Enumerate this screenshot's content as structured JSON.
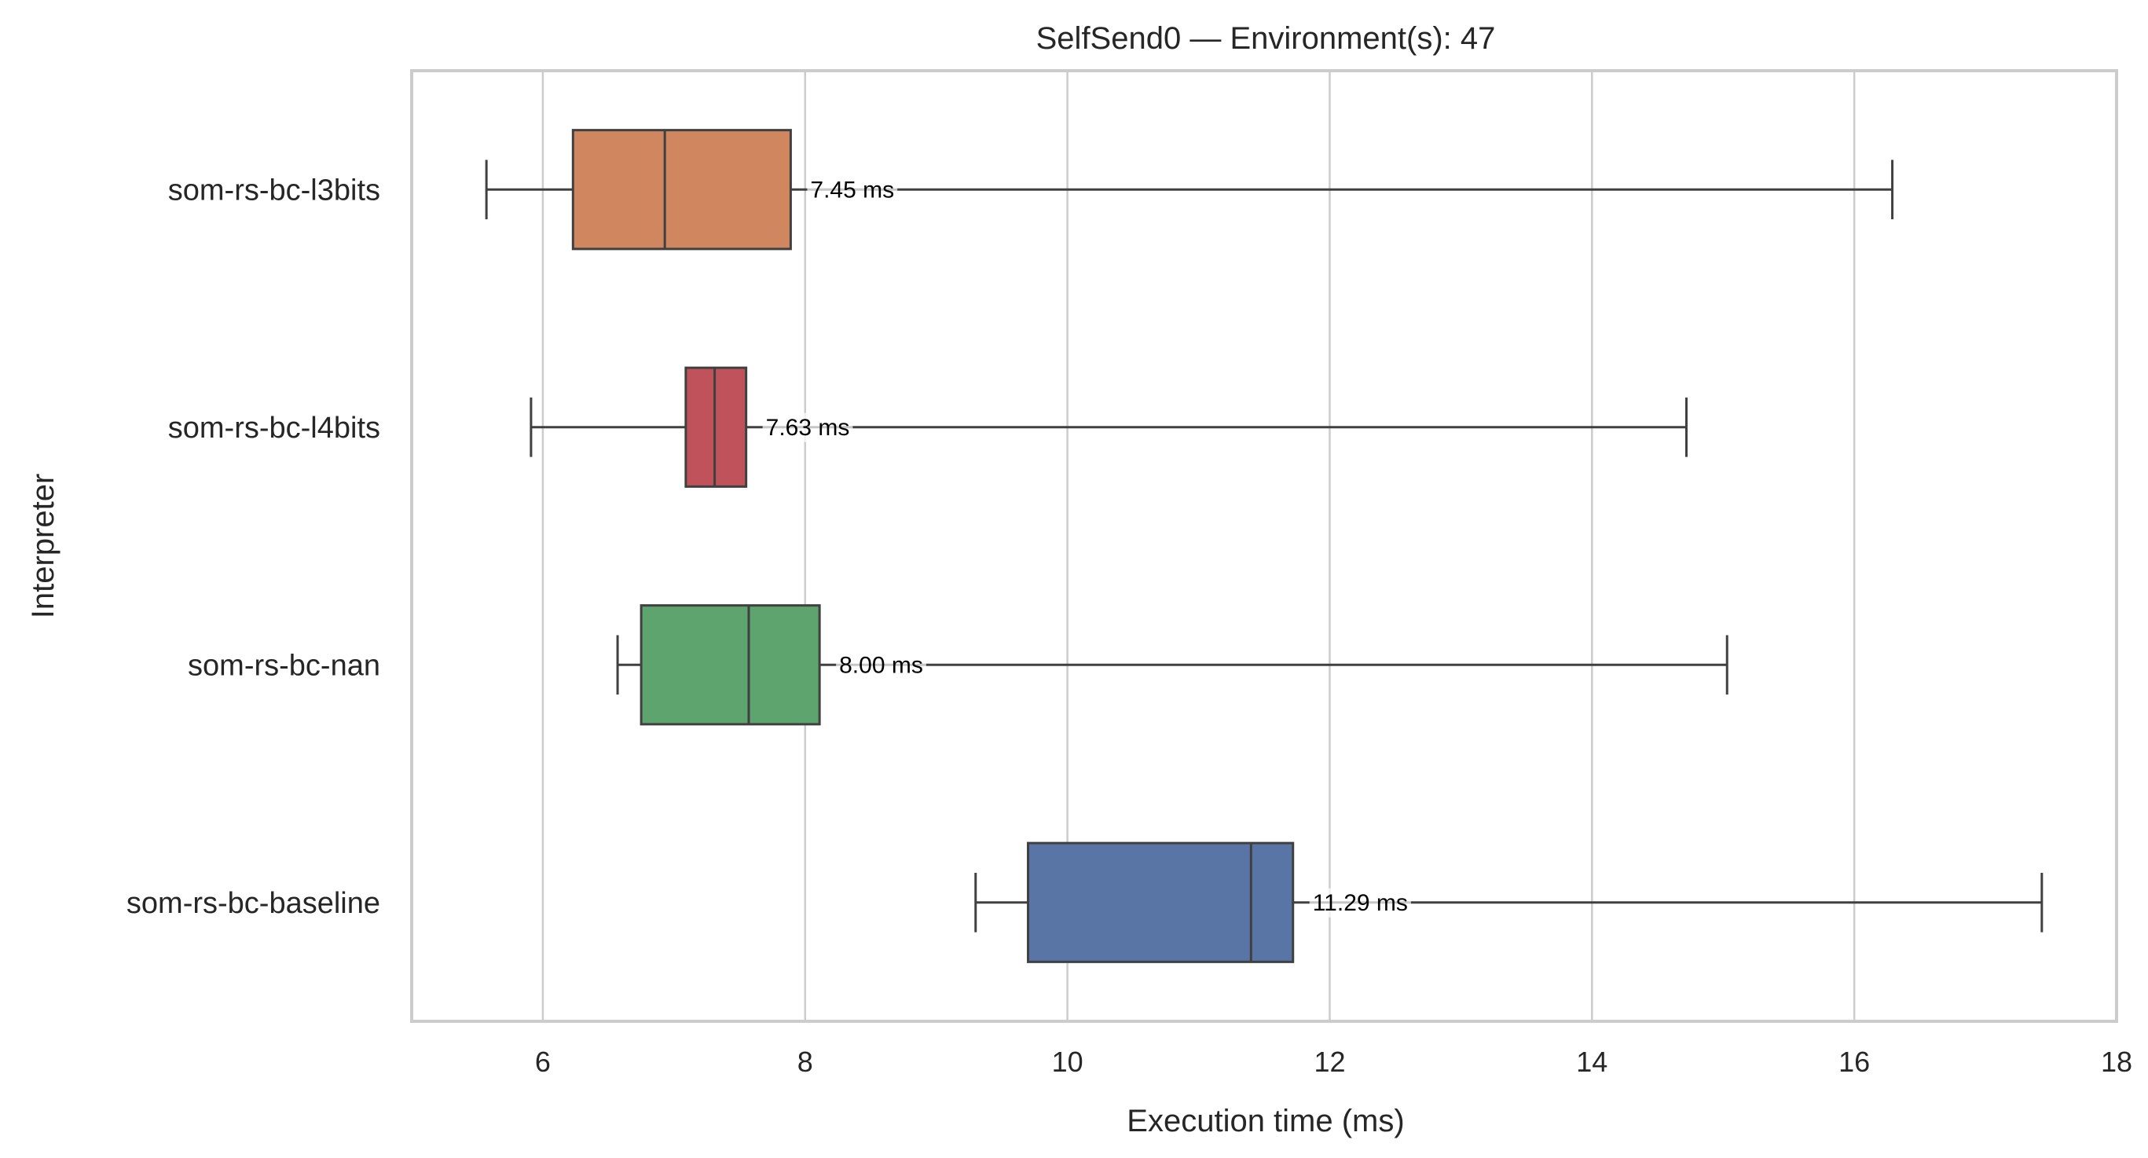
{
  "chart_data": {
    "type": "boxplot",
    "orientation": "horizontal",
    "title": "SelfSend0 — Environment(s): 47",
    "xlabel": "Execution time (ms)",
    "ylabel": "Interpreter",
    "xlim": [
      5,
      18
    ],
    "xticks": [
      6,
      8,
      10,
      12,
      14,
      16,
      18
    ],
    "grid": "vertical",
    "categories": [
      "som-rs-bc-l3bits",
      "som-rs-bc-l4bits",
      "som-rs-bc-nan",
      "som-rs-bc-baseline"
    ],
    "boxes": [
      {
        "name": "som-rs-bc-l3bits",
        "whislo": 5.57,
        "q1": 6.23,
        "median": 6.93,
        "q3": 7.89,
        "whishi": 16.29,
        "color": "#d0865f",
        "mean_label": "7.45 ms"
      },
      {
        "name": "som-rs-bc-l4bits",
        "whislo": 5.91,
        "q1": 7.09,
        "median": 7.31,
        "q3": 7.55,
        "whishi": 14.72,
        "color": "#bf525b",
        "mean_label": "7.63 ms"
      },
      {
        "name": "som-rs-bc-nan",
        "whislo": 6.57,
        "q1": 6.75,
        "median": 7.57,
        "q3": 8.11,
        "whishi": 15.03,
        "color": "#5da46e",
        "mean_label": "8.00 ms"
      },
      {
        "name": "som-rs-bc-baseline",
        "whislo": 9.3,
        "q1": 9.7,
        "median": 11.4,
        "q3": 11.72,
        "whishi": 17.43,
        "color": "#5875a6",
        "mean_label": "11.29 ms"
      }
    ]
  }
}
